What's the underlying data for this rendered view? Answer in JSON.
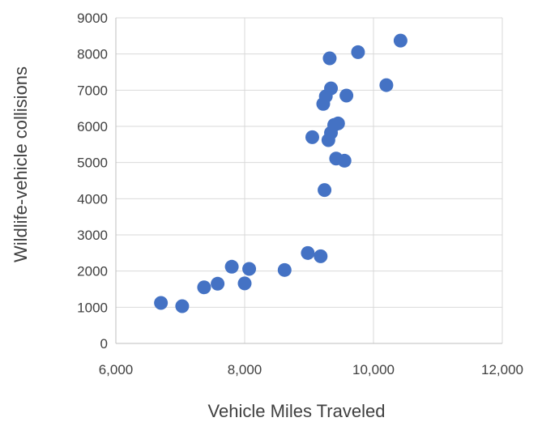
{
  "chart_data": {
    "type": "scatter",
    "title": "",
    "xlabel": "Vehicle Miles Traveled",
    "ylabel": "Wildlife-vehicle collisions",
    "xlim": [
      6000,
      12000
    ],
    "ylim": [
      0,
      9000
    ],
    "x_ticks": [
      6000,
      8000,
      10000,
      12000
    ],
    "x_tick_labels": [
      "6,000",
      "8,000",
      "10,000",
      "12,000"
    ],
    "y_ticks": [
      0,
      1000,
      2000,
      3000,
      4000,
      5000,
      6000,
      7000,
      8000,
      9000
    ],
    "y_tick_labels": [
      "0",
      "1000",
      "2000",
      "3000",
      "4000",
      "5000",
      "6000",
      "7000",
      "8000",
      "9000"
    ],
    "grid": true,
    "marker_color": "#4472c4",
    "points": [
      {
        "x": 6700,
        "y": 1120
      },
      {
        "x": 7030,
        "y": 1030
      },
      {
        "x": 7370,
        "y": 1550
      },
      {
        "x": 7580,
        "y": 1650
      },
      {
        "x": 7800,
        "y": 2120
      },
      {
        "x": 8000,
        "y": 1660
      },
      {
        "x": 8070,
        "y": 2060
      },
      {
        "x": 8620,
        "y": 2030
      },
      {
        "x": 8980,
        "y": 2500
      },
      {
        "x": 9180,
        "y": 2410
      },
      {
        "x": 9240,
        "y": 4240
      },
      {
        "x": 9050,
        "y": 5700
      },
      {
        "x": 9300,
        "y": 5620
      },
      {
        "x": 9420,
        "y": 5110
      },
      {
        "x": 9550,
        "y": 5050
      },
      {
        "x": 9340,
        "y": 5820
      },
      {
        "x": 9390,
        "y": 6040
      },
      {
        "x": 9450,
        "y": 6080
      },
      {
        "x": 9220,
        "y": 6620
      },
      {
        "x": 9260,
        "y": 6830
      },
      {
        "x": 9340,
        "y": 7050
      },
      {
        "x": 9580,
        "y": 6850
      },
      {
        "x": 9320,
        "y": 7880
      },
      {
        "x": 9760,
        "y": 8050
      },
      {
        "x": 10200,
        "y": 7140
      },
      {
        "x": 10420,
        "y": 8370
      }
    ]
  }
}
